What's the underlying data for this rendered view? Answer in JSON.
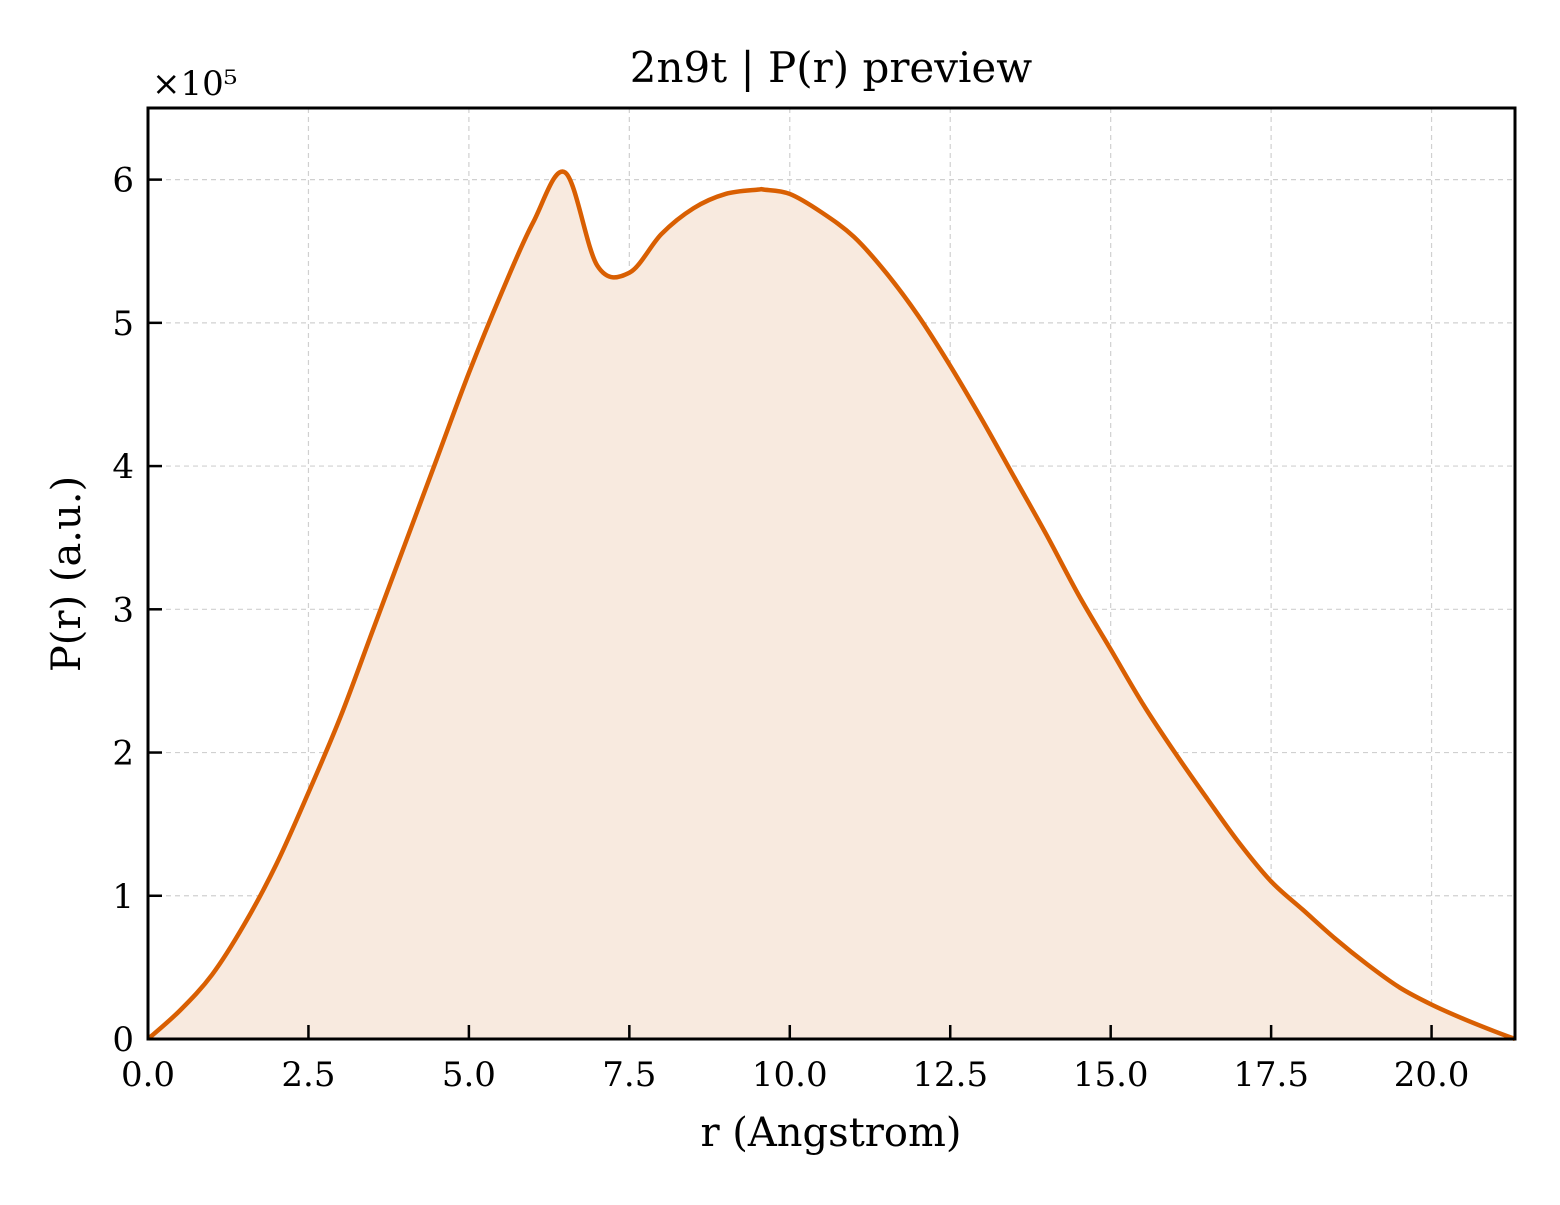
{
  "chart_data": {
    "type": "area",
    "title": "2n9t | P(r) preview",
    "xlabel": "r (Angstrom)",
    "ylabel": "P(r) (a.u.)",
    "y_multiplier_label": "×10⁵",
    "y_scale_factor": 100000,
    "xlim": [
      0,
      21.3
    ],
    "ylim": [
      0,
      650000
    ],
    "x_ticks": [
      0,
      2.5,
      5,
      7.5,
      10,
      12.5,
      15,
      17.5,
      20
    ],
    "x_tick_labels": [
      "0.0",
      "2.5",
      "5.0",
      "7.5",
      "10.0",
      "12.5",
      "15.0",
      "17.5",
      "20.0"
    ],
    "y_ticks": [
      0,
      100000,
      200000,
      300000,
      400000,
      500000,
      600000
    ],
    "y_tick_labels": [
      "0",
      "1",
      "2",
      "3",
      "4",
      "5",
      "6"
    ],
    "grid": true,
    "colors": {
      "line": "#d95f02",
      "fill": "#f8eadf",
      "grid": "#d0d0d0"
    },
    "series": [
      {
        "x": [
          0,
          0.5,
          1,
          1.5,
          2,
          2.5,
          3,
          3.5,
          4,
          4.5,
          5,
          5.5,
          6,
          6.5,
          7,
          7.5,
          8,
          8.5,
          9,
          9.5,
          9.6,
          10,
          10.5,
          11,
          11.5,
          12,
          12.5,
          13,
          13.5,
          14,
          14.5,
          15,
          15.5,
          16,
          16.5,
          17,
          17.5,
          18,
          18.5,
          19,
          19.5,
          20,
          20.5,
          21,
          21.3
        ],
        "y": [
          0,
          20000,
          45000,
          80000,
          122000,
          172000,
          225000,
          285000,
          345000,
          405000,
          465000,
          520000,
          570000,
          605000,
          540000,
          535000,
          562000,
          580000,
          590000,
          593000,
          593000,
          590000,
          577000,
          560000,
          535000,
          505000,
          470000,
          432000,
          392000,
          352000,
          310000,
          272000,
          234000,
          200000,
          168000,
          137000,
          110000,
          90000,
          70000,
          52000,
          36000,
          24000,
          14000,
          5000,
          0
        ]
      }
    ]
  }
}
